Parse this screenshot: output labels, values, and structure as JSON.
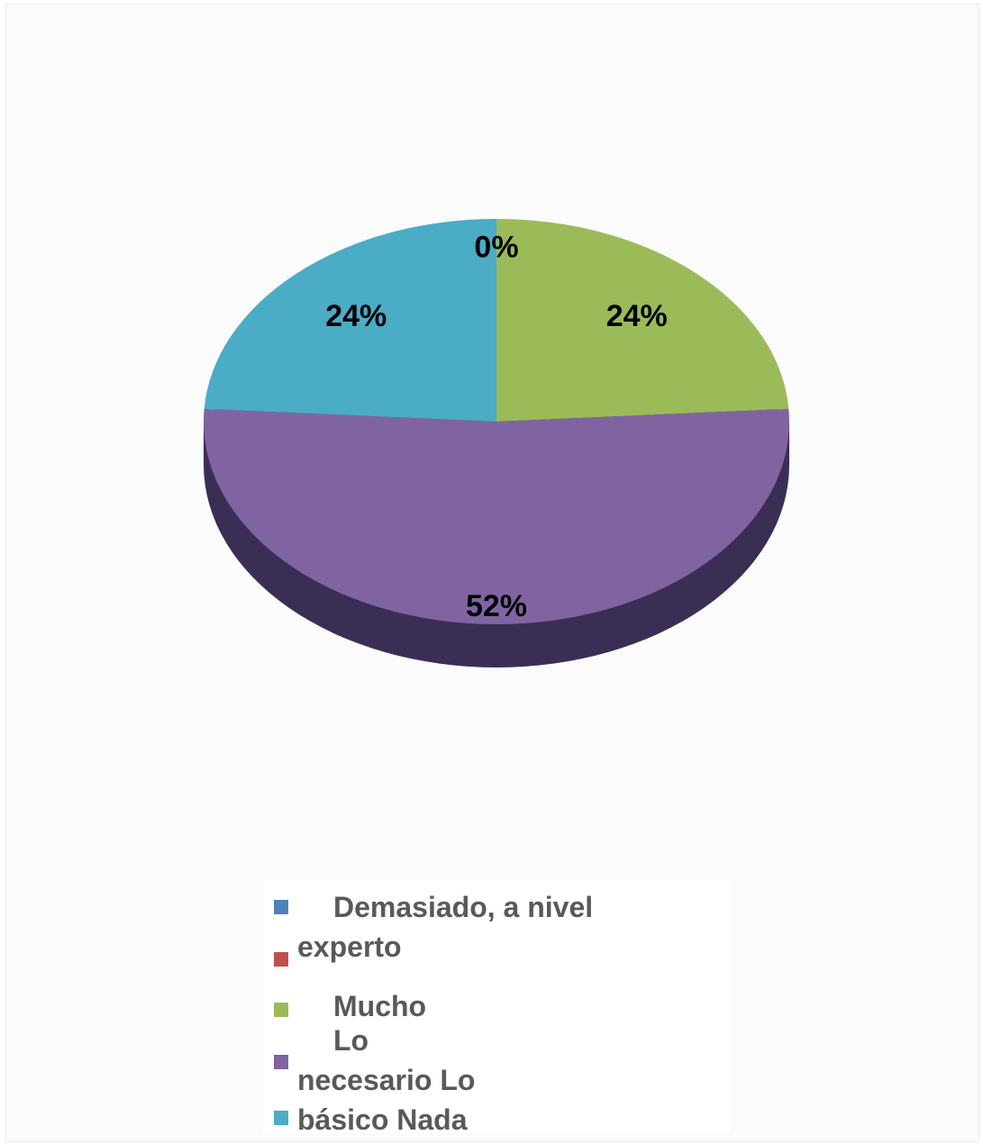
{
  "chart_data": {
    "type": "pie",
    "categories": [
      "Demasiado, a nivel experto",
      "Mucho",
      "Lo necesario",
      "Lo básico",
      "Nada"
    ],
    "values": [
      0,
      null,
      24,
      52,
      24
    ],
    "colors": [
      "#4f81bd",
      "#c0504d",
      "#9bbb59",
      "#8064a2",
      "#4bacc6"
    ]
  }
}
